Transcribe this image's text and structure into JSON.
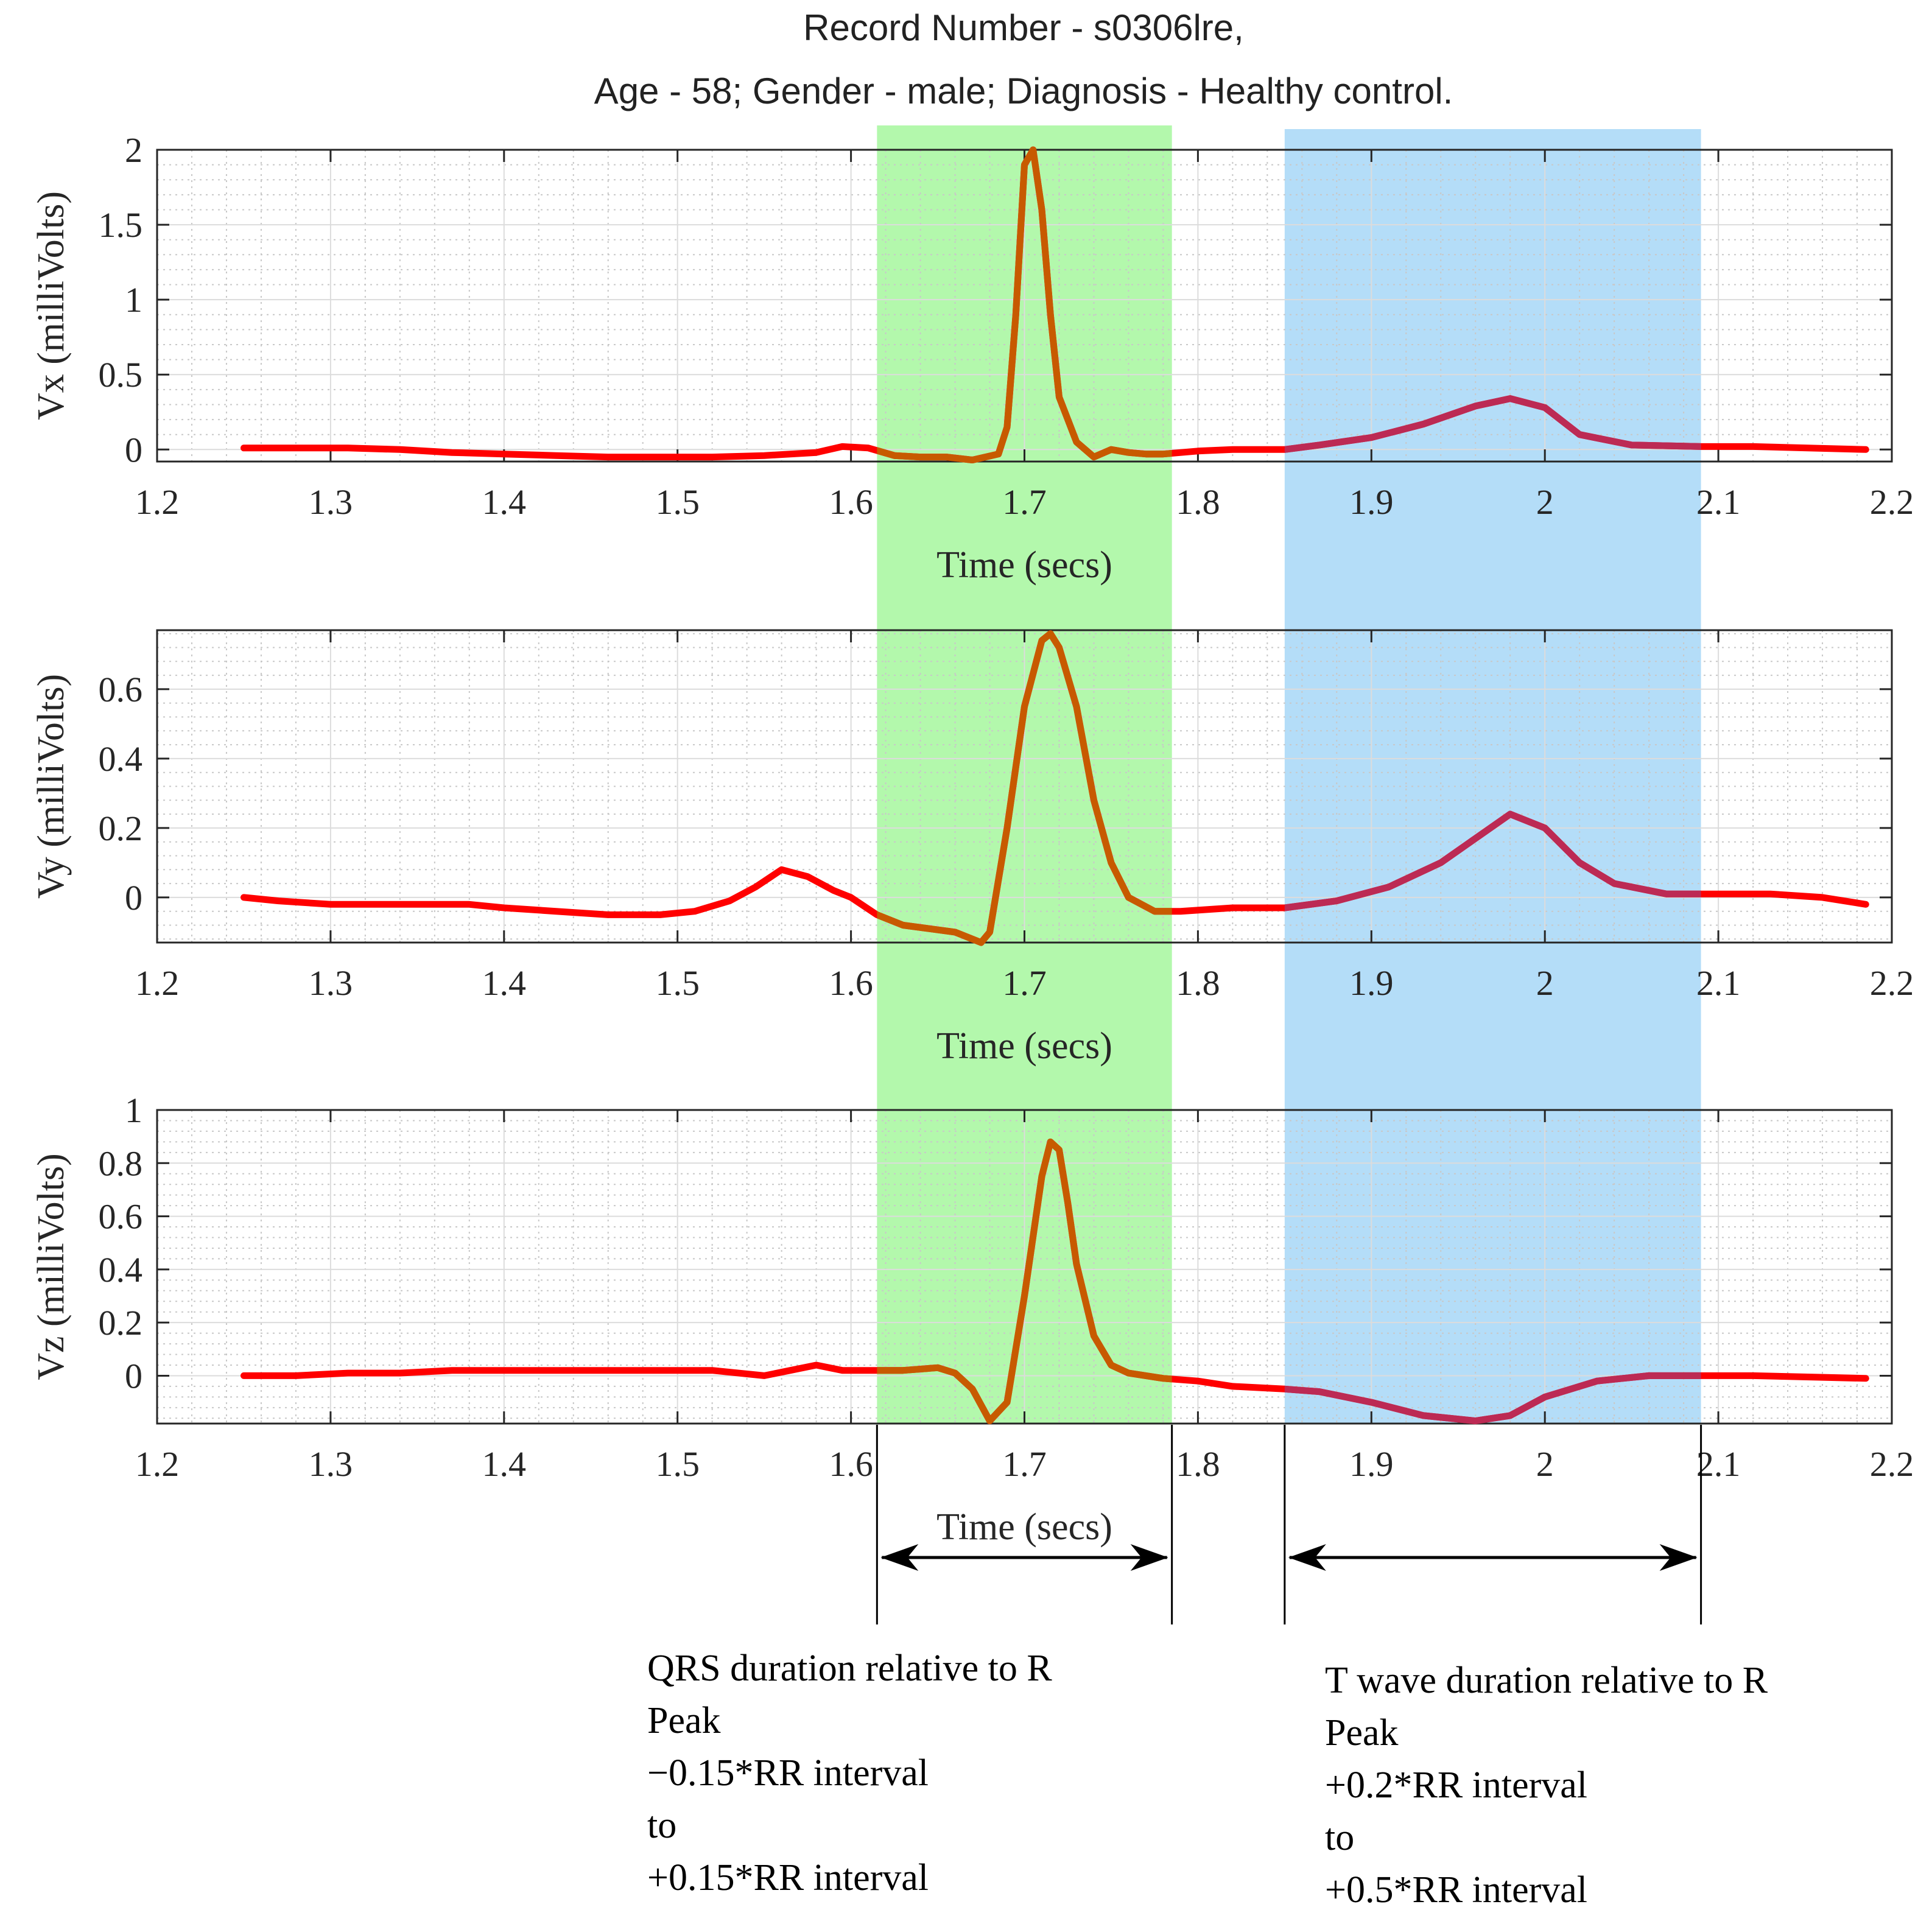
{
  "title_lines": [
    "Record Number - s0306lre,",
    "Age - 58; Gender -  male; Diagnosis -  Healthy control."
  ],
  "colors": {
    "signal": "#ff0000",
    "qrs_band": "#b3f8ac",
    "t_band": "#b4ddf8",
    "signal_in_qrs": "#c75a00",
    "signal_in_t": "#bc2a54"
  },
  "annotations": {
    "qrs": {
      "x_range": [
        1.615,
        1.785
      ],
      "lines": [
        "QRS duration relative to R",
        "Peak",
        "−0.15*RR interval",
        "to",
        "+0.15*RR interval"
      ]
    },
    "t_wave": {
      "x_range": [
        1.85,
        2.09
      ],
      "lines": [
        "T wave duration relative to R",
        "Peak",
        "+0.2*RR interval",
        "to",
        "+0.5*RR interval"
      ]
    }
  },
  "chart_data": [
    {
      "type": "line",
      "xlabel": "Time (secs)",
      "ylabel": "Vx (milliVolts)",
      "xlim": [
        1.2,
        2.2
      ],
      "ylim": [
        -0.08,
        2.0
      ],
      "x_ticks": [
        "1.2",
        "1.3",
        "1.4",
        "1.5",
        "1.6",
        "1.7",
        "1.8",
        "1.9",
        "2",
        "2.1",
        "2.2"
      ],
      "y_ticks": [
        {
          "value": 0,
          "label": "0"
        },
        {
          "value": 0.5,
          "label": "0.5"
        },
        {
          "value": 1,
          "label": "1"
        },
        {
          "value": 1.5,
          "label": "1.5"
        },
        {
          "value": 2,
          "label": "2"
        }
      ],
      "grid": true,
      "minor_grid": true,
      "x": [
        1.25,
        1.28,
        1.31,
        1.34,
        1.37,
        1.4,
        1.43,
        1.46,
        1.49,
        1.52,
        1.55,
        1.58,
        1.595,
        1.61,
        1.625,
        1.64,
        1.655,
        1.67,
        1.685,
        1.69,
        1.695,
        1.7,
        1.705,
        1.71,
        1.715,
        1.72,
        1.73,
        1.74,
        1.75,
        1.76,
        1.77,
        1.78,
        1.8,
        1.82,
        1.85,
        1.87,
        1.9,
        1.93,
        1.96,
        1.98,
        2.0,
        2.02,
        2.05,
        2.09,
        2.12,
        2.185
      ],
      "y": [
        0.01,
        0.01,
        0.01,
        0.0,
        -0.02,
        -0.03,
        -0.04,
        -0.05,
        -0.05,
        -0.05,
        -0.04,
        -0.02,
        0.02,
        0.01,
        -0.04,
        -0.05,
        -0.05,
        -0.07,
        -0.03,
        0.15,
        0.9,
        1.9,
        2.0,
        1.6,
        0.9,
        0.35,
        0.05,
        -0.05,
        0.0,
        -0.02,
        -0.03,
        -0.03,
        -0.01,
        0.0,
        0.0,
        0.03,
        0.08,
        0.17,
        0.29,
        0.34,
        0.28,
        0.1,
        0.03,
        0.02,
        0.02,
        0.0
      ]
    },
    {
      "type": "line",
      "xlabel": "Time (secs)",
      "ylabel": "Vy (milliVolts)",
      "xlim": [
        1.2,
        2.2
      ],
      "ylim": [
        -0.13,
        0.77
      ],
      "x_ticks": [
        "1.2",
        "1.3",
        "1.4",
        "1.5",
        "1.6",
        "1.7",
        "1.8",
        "1.9",
        "2",
        "2.1",
        "2.2"
      ],
      "y_ticks": [
        {
          "value": 0,
          "label": "0"
        },
        {
          "value": 0.2,
          "label": "0.2"
        },
        {
          "value": 0.4,
          "label": "0.4"
        },
        {
          "value": 0.6,
          "label": "0.6"
        }
      ],
      "grid": true,
      "minor_grid": true,
      "x": [
        1.25,
        1.27,
        1.3,
        1.32,
        1.35,
        1.38,
        1.4,
        1.43,
        1.46,
        1.49,
        1.51,
        1.53,
        1.545,
        1.56,
        1.575,
        1.59,
        1.6,
        1.615,
        1.63,
        1.645,
        1.66,
        1.675,
        1.68,
        1.69,
        1.7,
        1.71,
        1.715,
        1.72,
        1.73,
        1.74,
        1.75,
        1.76,
        1.775,
        1.79,
        1.82,
        1.85,
        1.88,
        1.91,
        1.94,
        1.96,
        1.98,
        2.0,
        2.02,
        2.04,
        2.07,
        2.1,
        2.13,
        2.16,
        2.185
      ],
      "y": [
        0.0,
        -0.01,
        -0.02,
        -0.02,
        -0.02,
        -0.02,
        -0.03,
        -0.04,
        -0.05,
        -0.05,
        -0.04,
        -0.01,
        0.03,
        0.08,
        0.06,
        0.02,
        0.0,
        -0.05,
        -0.08,
        -0.09,
        -0.1,
        -0.13,
        -0.1,
        0.2,
        0.55,
        0.74,
        0.76,
        0.72,
        0.55,
        0.28,
        0.1,
        0.0,
        -0.04,
        -0.04,
        -0.03,
        -0.03,
        -0.01,
        0.03,
        0.1,
        0.17,
        0.24,
        0.2,
        0.1,
        0.04,
        0.01,
        0.01,
        0.01,
        0.0,
        -0.02
      ]
    },
    {
      "type": "line",
      "xlabel": "Time (secs)",
      "ylabel": "Vz (milliVolts)",
      "xlim": [
        1.2,
        2.2
      ],
      "ylim": [
        -0.18,
        1.0
      ],
      "x_ticks": [
        "1.2",
        "1.3",
        "1.4",
        "1.5",
        "1.6",
        "1.7",
        "1.8",
        "1.9",
        "2",
        "2.1",
        "2.2"
      ],
      "y_ticks": [
        {
          "value": 0,
          "label": "0"
        },
        {
          "value": 0.2,
          "label": "0.2"
        },
        {
          "value": 0.4,
          "label": "0.4"
        },
        {
          "value": 0.6,
          "label": "0.6"
        },
        {
          "value": 0.8,
          "label": "0.8"
        },
        {
          "value": 1,
          "label": "1"
        }
      ],
      "grid": true,
      "minor_grid": true,
      "x": [
        1.25,
        1.28,
        1.31,
        1.34,
        1.37,
        1.4,
        1.43,
        1.46,
        1.49,
        1.52,
        1.55,
        1.565,
        1.58,
        1.595,
        1.61,
        1.63,
        1.65,
        1.66,
        1.67,
        1.68,
        1.69,
        1.7,
        1.71,
        1.715,
        1.72,
        1.725,
        1.73,
        1.74,
        1.75,
        1.76,
        1.78,
        1.8,
        1.82,
        1.85,
        1.87,
        1.9,
        1.93,
        1.96,
        1.98,
        2.0,
        2.03,
        2.06,
        2.09,
        2.12,
        2.185
      ],
      "y": [
        0.0,
        0.0,
        0.01,
        0.01,
        0.02,
        0.02,
        0.02,
        0.02,
        0.02,
        0.02,
        0.0,
        0.02,
        0.04,
        0.02,
        0.02,
        0.02,
        0.03,
        0.01,
        -0.05,
        -0.17,
        -0.1,
        0.3,
        0.75,
        0.88,
        0.85,
        0.65,
        0.42,
        0.15,
        0.04,
        0.01,
        -0.01,
        -0.02,
        -0.04,
        -0.05,
        -0.06,
        -0.1,
        -0.15,
        -0.17,
        -0.15,
        -0.08,
        -0.02,
        0.0,
        0.0,
        0.0,
        -0.01
      ]
    }
  ]
}
